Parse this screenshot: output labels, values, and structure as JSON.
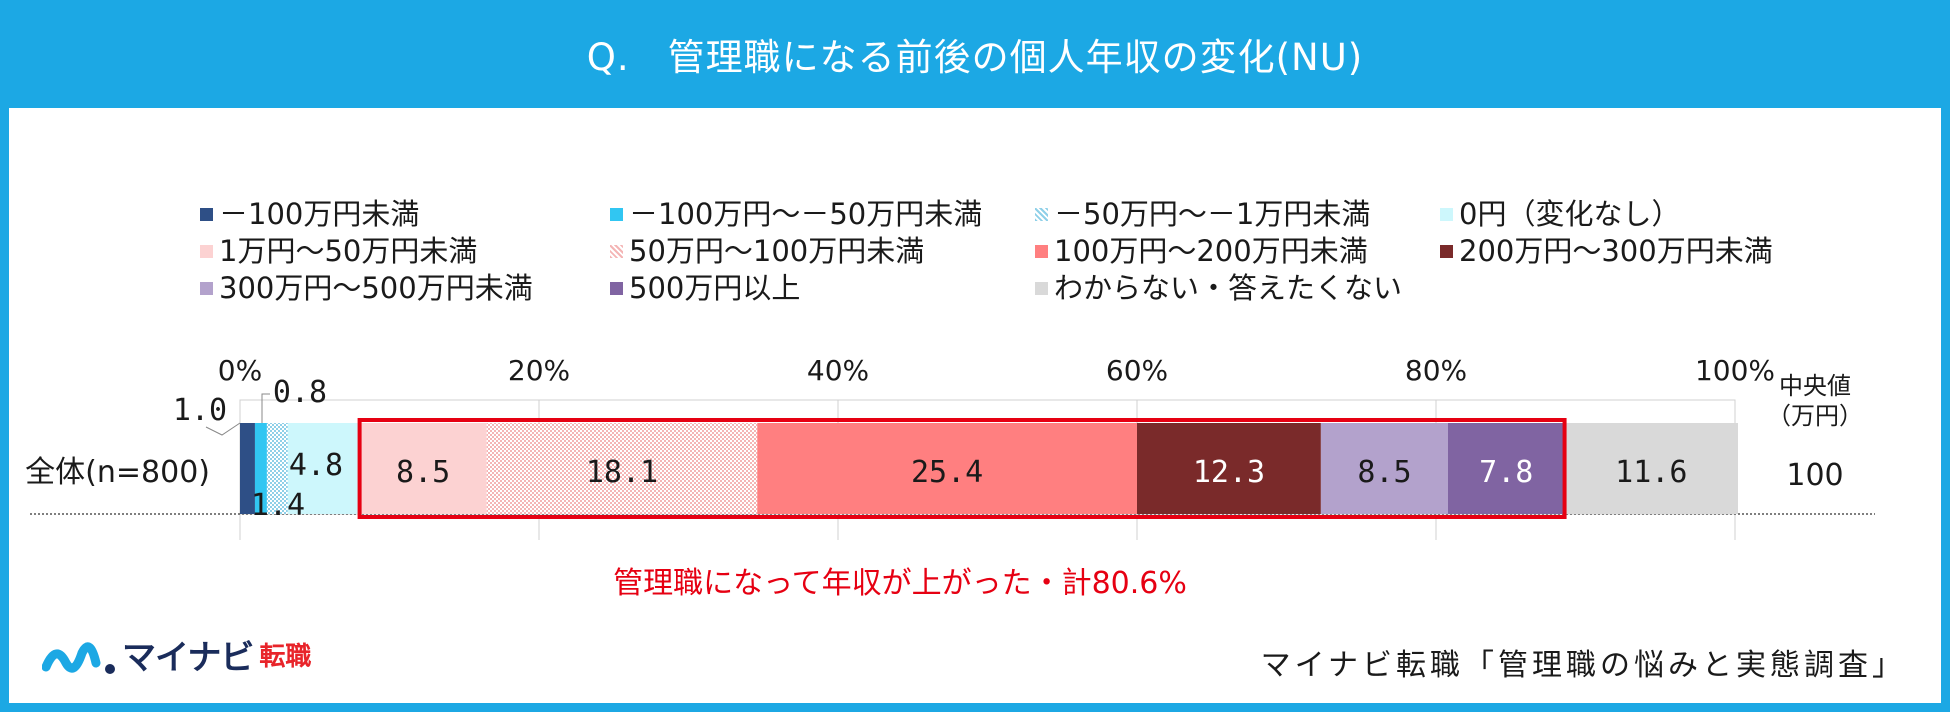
{
  "title": "Q.　管理職になる前後の個人年収の変化(NU)",
  "chart_data": {
    "type": "bar",
    "orientation": "horizontal-stacked-100",
    "categories": [
      "全体(n=800)"
    ],
    "x_ticks": [
      "0%",
      "20%",
      "40%",
      "60%",
      "80%",
      "100%"
    ],
    "xlim": [
      0,
      100
    ],
    "series": [
      {
        "name": "－100万円未満",
        "values": [
          1.0
        ],
        "label": "1.0",
        "color": "#2e4f86",
        "pattern": "solid"
      },
      {
        "name": "－100万円～－50万円未満",
        "values": [
          0.8
        ],
        "label": "0.8",
        "color": "#31c6f2",
        "pattern": "solid"
      },
      {
        "name": "－50万円～－1万円未満",
        "values": [
          1.4
        ],
        "label": "1.4",
        "color": "#8fd0e8",
        "pattern": "dots"
      },
      {
        "name": "0円（変化なし）",
        "values": [
          4.8
        ],
        "label": "4.8",
        "color": "#cdf7fc",
        "pattern": "solid"
      },
      {
        "name": "1万円～50万円未満",
        "values": [
          8.5
        ],
        "label": "8.5",
        "color": "#fcd2d2",
        "pattern": "solid"
      },
      {
        "name": "50万円～100万円未満",
        "values": [
          18.1
        ],
        "label": "18.1",
        "color": "#f4b5b5",
        "pattern": "dots"
      },
      {
        "name": "100万円～200万円未満",
        "values": [
          25.4
        ],
        "label": "25.4",
        "color": "#ff7f80",
        "pattern": "solid"
      },
      {
        "name": "200万円～300万円未満",
        "values": [
          12.3
        ],
        "label": "12.3",
        "color": "#7a2a2a",
        "pattern": "solid"
      },
      {
        "name": "300万円～500万円未満",
        "values": [
          8.5
        ],
        "label": "8.5",
        "color": "#b3a2cc",
        "pattern": "solid"
      },
      {
        "name": "500万円以上",
        "values": [
          7.8
        ],
        "label": "7.8",
        "color": "#8064a2",
        "pattern": "solid"
      },
      {
        "name": "わからない・答えたくない",
        "values": [
          11.6
        ],
        "label": "11.6",
        "color": "#d9d9d9",
        "pattern": "solid"
      }
    ],
    "median_header": [
      "中央値",
      "（万円）"
    ],
    "median_value": "100",
    "highlight_range": [
      4,
      9
    ],
    "highlight_color": "#e60012",
    "annotation": "管理職になって年収が上がった・計80.6%",
    "legend_position": "top"
  },
  "logo": {
    "brand": "マイナビ",
    "sub": "転職"
  },
  "source": "マイナビ転職「管理職の悩みと実態調査」",
  "colors": {
    "accent": "#1ca8e4",
    "highlight": "#e60012"
  }
}
